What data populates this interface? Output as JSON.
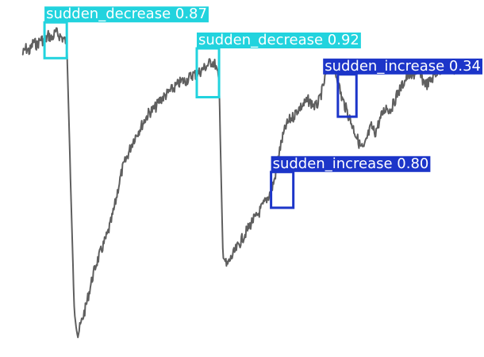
{
  "chart_data": {
    "type": "line",
    "title": "",
    "xlabel": "",
    "ylabel": "",
    "grid": false,
    "series": [
      {
        "line_color": "#5f5f5f",
        "x": [
          0,
          1,
          2,
          3,
          4,
          5,
          6,
          7,
          8,
          9,
          10,
          11,
          12,
          13,
          14,
          15,
          16,
          17,
          18,
          19,
          20,
          21,
          22,
          23,
          24,
          25,
          26,
          27,
          28,
          29,
          30,
          31,
          32,
          33,
          34,
          35,
          36,
          37,
          38,
          39,
          40,
          41,
          42,
          43,
          44,
          45,
          46,
          47,
          48,
          49,
          50,
          51,
          52,
          53,
          54,
          55,
          56,
          57,
          58,
          59,
          60,
          61,
          62,
          63,
          64,
          65,
          66,
          67,
          68,
          69,
          70,
          71,
          72,
          73,
          74,
          75,
          76,
          77,
          78,
          79,
          80,
          81,
          82,
          83,
          84,
          85,
          86,
          87,
          88,
          89,
          90,
          91,
          92,
          93,
          94,
          95,
          96,
          97,
          98,
          99,
          100,
          101,
          102,
          103,
          104,
          105,
          106,
          107,
          108,
          109,
          110,
          111,
          112,
          113,
          114,
          115,
          116,
          117,
          118,
          119
        ],
        "y": [
          0.88,
          0.9,
          0.89,
          0.92,
          0.91,
          0.93,
          0.92,
          0.94,
          0.93,
          0.95,
          0.94,
          0.93,
          0.92,
          0.5,
          0.1,
          0.02,
          0.06,
          0.1,
          0.15,
          0.2,
          0.24,
          0.27,
          0.3,
          0.33,
          0.37,
          0.42,
          0.48,
          0.53,
          0.56,
          0.59,
          0.62,
          0.64,
          0.66,
          0.68,
          0.7,
          0.71,
          0.72,
          0.74,
          0.75,
          0.76,
          0.77,
          0.78,
          0.79,
          0.8,
          0.8,
          0.81,
          0.82,
          0.82,
          0.83,
          0.84,
          0.85,
          0.86,
          0.85,
          0.8,
          0.28,
          0.23,
          0.25,
          0.27,
          0.29,
          0.31,
          0.33,
          0.35,
          0.37,
          0.38,
          0.4,
          0.42,
          0.44,
          0.46,
          0.5,
          0.57,
          0.62,
          0.66,
          0.68,
          0.69,
          0.71,
          0.72,
          0.73,
          0.74,
          0.73,
          0.72,
          0.74,
          0.78,
          0.83,
          0.86,
          0.84,
          0.8,
          0.75,
          0.72,
          0.69,
          0.66,
          0.63,
          0.6,
          0.59,
          0.63,
          0.66,
          0.64,
          0.67,
          0.7,
          0.72,
          0.71,
          0.73,
          0.76,
          0.78,
          0.8,
          0.82,
          0.81,
          0.83,
          0.82,
          0.8,
          0.79,
          0.8,
          0.82,
          0.83,
          0.84,
          0.85,
          0.84,
          0.83,
          0.84,
          0.85,
          0.84
        ]
      }
    ],
    "detections": [
      {
        "label": "sudden_decrease 0.87",
        "color": "#22d3de",
        "x0": 6,
        "x1": 12,
        "y_bottom": 0.87,
        "y_top": 0.98
      },
      {
        "label": "sudden_decrease 0.92",
        "color": "#22d3de",
        "x0": 47,
        "x1": 53,
        "y_bottom": 0.75,
        "y_top": 0.9
      },
      {
        "label": "sudden_increase 0.34",
        "color": "#1c35c9",
        "x0": 85,
        "x1": 90,
        "y_bottom": 0.69,
        "y_top": 0.82
      },
      {
        "label": "sudden_increase 0.80",
        "color": "#1c35c9",
        "x0": 67,
        "x1": 73,
        "y_bottom": 0.41,
        "y_top": 0.52
      }
    ]
  }
}
